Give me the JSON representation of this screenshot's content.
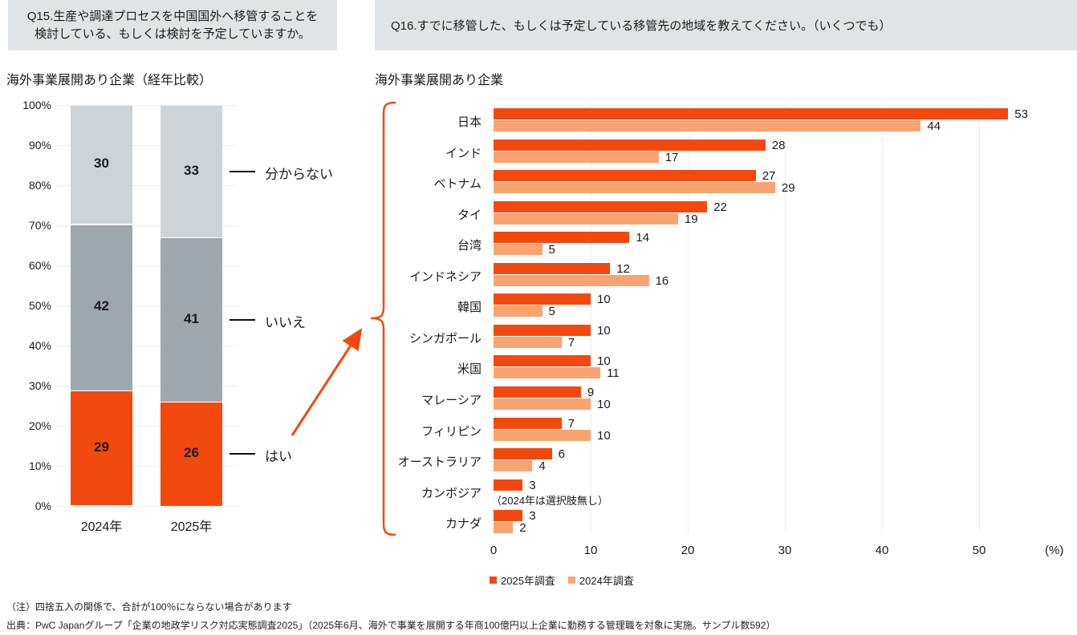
{
  "colors": {
    "accent_2025": "#F4490E",
    "accent_2024": "#F9A470",
    "gray_no": "#9EA6AE",
    "gray_unknown": "#CED3D8",
    "header_bg": "#E1E4E7",
    "gridline": "#ECEEF0",
    "text": "#1B1B1B"
  },
  "q15": {
    "question_line1": "Q15.生産や調達プロセスを中国国外へ移管することを",
    "question_line2": "検討している、もしくは検討を予定していますか。",
    "subtitle": "海外事業展開あり企業（経年比較）"
  },
  "q16": {
    "question": "Q16.すでに移管した、もしくは予定している移管先の地域を教えてください。（いくつでも）",
    "subtitle": "海外事業展開あり企業"
  },
  "footnotes": [
    "（注）四捨五入の関係で、合計が100％にならない場合があります",
    "出典：PwC Japanグループ「企業の地政学リスク対応実態調査2025」（2025年6月、海外で事業を展開する年商100億円以上企業に勤務する管理職を対象に実施。サンプル数592）"
  ],
  "chart_data": [
    {
      "type": "bar",
      "variant": "stacked-column",
      "title": "海外事業展開あり企業（経年比較）",
      "categories": [
        "2024年",
        "2025年"
      ],
      "series": [
        {
          "name": "はい",
          "values": [
            29,
            26
          ],
          "color": "#F4490E"
        },
        {
          "name": "いいえ",
          "values": [
            42,
            41
          ],
          "color": "#9EA6AE"
        },
        {
          "name": "分からない",
          "values": [
            30,
            33
          ],
          "color": "#CED3D8"
        }
      ],
      "ylabel": "",
      "ylim": [
        0,
        100
      ],
      "yticks": [
        "0%",
        "10%",
        "20%",
        "30%",
        "40%",
        "50%",
        "60%",
        "70%",
        "80%",
        "90%",
        "100%"
      ],
      "grid": true,
      "legend_position": "callout-right"
    },
    {
      "type": "bar",
      "variant": "horizontal-grouped",
      "title": "海外事業展開あり企業",
      "categories": [
        "日本",
        "インド",
        "ベトナム",
        "タイ",
        "台湾",
        "インドネシア",
        "韓国",
        "シンガポール",
        "米国",
        "マレーシア",
        "フィリピン",
        "オーストラリア",
        "カンボジア",
        "カナダ"
      ],
      "series": [
        {
          "name": "2025年調査",
          "values": [
            53,
            28,
            27,
            22,
            14,
            12,
            10,
            10,
            10,
            9,
            7,
            6,
            3,
            3
          ],
          "color": "#F4490E"
        },
        {
          "name": "2024年調査",
          "values": [
            44,
            17,
            29,
            19,
            5,
            16,
            5,
            7,
            11,
            10,
            10,
            4,
            null,
            2
          ],
          "color": "#F9A470"
        }
      ],
      "missing_note": {
        "category": "カンボジア",
        "series": "2024年調査",
        "text": "（2024年は選択肢無し）"
      },
      "xlabel": "(%)",
      "xlim": [
        0,
        55
      ],
      "xticks": [
        0,
        10,
        20,
        30,
        40,
        50
      ],
      "grid": true,
      "legend_position": "bottom-left"
    }
  ]
}
